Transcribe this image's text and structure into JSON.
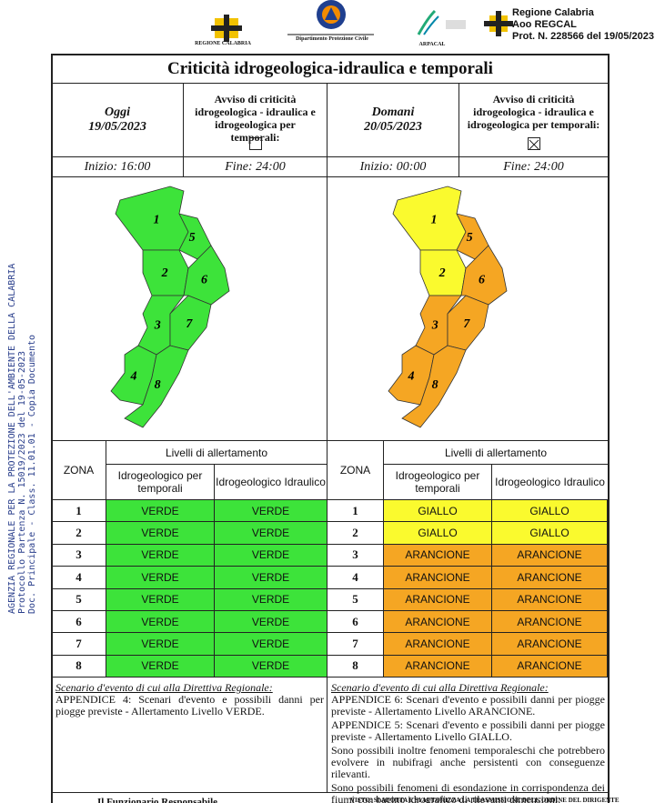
{
  "header": {
    "logos": [
      "REGIONE CALABRIA",
      "Dipartimento Protezione Civile",
      "ARPACAL"
    ],
    "stamp": [
      "Regione Calabria",
      "Aoo REGCAL",
      "Prot. N. 228566 del 19/05/2023"
    ]
  },
  "side_stamp": [
    "AGENZIA REGIONALE PER LA PROTEZIONE DELL'AMBIENTE DELLA CALABRIA",
    "Protocollo Partenza N. 15019/2023 del 19-05-2023",
    "Doc. Principale - Class. 11.01.01 - Copia Documento"
  ],
  "title": "Criticità idrogeologica-idraulica e temporali",
  "table_labels": {
    "zone": "ZONA",
    "levels": "Livelli di allertamento",
    "col1": "Idrogeologico per temporali",
    "col2": "Idrogeologico Idraulico"
  },
  "days": [
    {
      "label": "Oggi",
      "date": "19/05/2023",
      "notice": "Avviso di criticità idrogeologica - idraulica e idrogeologica per temporali:",
      "checked": false,
      "start": "Inizio: 16:00",
      "end": "Fine: 24:00",
      "zones": [
        {
          "zone": "1",
          "col1": "VERDE",
          "col2": "VERDE",
          "color": "#3de33a"
        },
        {
          "zone": "2",
          "col1": "VERDE",
          "col2": "VERDE",
          "color": "#3de33a"
        },
        {
          "zone": "3",
          "col1": "VERDE",
          "col2": "VERDE",
          "color": "#3de33a"
        },
        {
          "zone": "4",
          "col1": "VERDE",
          "col2": "VERDE",
          "color": "#3de33a"
        },
        {
          "zone": "5",
          "col1": "VERDE",
          "col2": "VERDE",
          "color": "#3de33a"
        },
        {
          "zone": "6",
          "col1": "VERDE",
          "col2": "VERDE",
          "color": "#3de33a"
        },
        {
          "zone": "7",
          "col1": "VERDE",
          "col2": "VERDE",
          "color": "#3de33a"
        },
        {
          "zone": "8",
          "col1": "VERDE",
          "col2": "VERDE",
          "color": "#3de33a"
        }
      ],
      "scenario_title": "Scenario d'evento di cui alla Direttiva Regionale:",
      "scenario": [
        "APPENDICE 4: Scenari d'evento e possibili danni per piogge previste - Allertamento Livello VERDE."
      ],
      "footer": "Il Funzionario Responsabile"
    },
    {
      "label": "Domani",
      "date": "20/05/2023",
      "notice": "Avviso di criticità idrogeologica - idraulica e idrogeologica per temporali:",
      "checked": true,
      "start": "Inizio: 00:00",
      "end": "Fine: 24:00",
      "zones": [
        {
          "zone": "1",
          "col1": "GIALLO",
          "col2": "GIALLO",
          "color": "#fafa2e"
        },
        {
          "zone": "2",
          "col1": "GIALLO",
          "col2": "GIALLO",
          "color": "#fafa2e"
        },
        {
          "zone": "3",
          "col1": "ARANCIONE",
          "col2": "ARANCIONE",
          "color": "#f5a623"
        },
        {
          "zone": "4",
          "col1": "ARANCIONE",
          "col2": "ARANCIONE",
          "color": "#f5a623"
        },
        {
          "zone": "5",
          "col1": "ARANCIONE",
          "col2": "ARANCIONE",
          "color": "#f5a623"
        },
        {
          "zone": "6",
          "col1": "ARANCIONE",
          "col2": "ARANCIONE",
          "color": "#f5a623"
        },
        {
          "zone": "7",
          "col1": "ARANCIONE",
          "col2": "ARANCIONE",
          "color": "#f5a623"
        },
        {
          "zone": "8",
          "col1": "ARANCIONE",
          "col2": "ARANCIONE",
          "color": "#f5a623"
        }
      ],
      "scenario_title": "Scenario d'evento di cui alla Direttiva Regionale:",
      "scenario": [
        "APPENDICE 6: Scenari d'evento e possibili danni per piogge previste - Allertamento Livello ARANCIONE.",
        "APPENDICE 5: Scenari d'evento e possibili danni per piogge previste - Allertamento Livello GIALLO.",
        "Sono possibili inoltre fenomeni temporaleschi che potrebbero evolvere in nubifragi anche persistenti con conseguenze rilevanti.",
        "Sono possibili fenomeni di esondazione in corrispondenza dei fiumi con bacino idrografico di rilevanti dimensioni."
      ],
      "footer": "VISTO: SI ADOTTA E SI AUTORIZZA LA TRASMISSIONE DELL'ORDINE DEL DIRIGENTE"
    }
  ]
}
